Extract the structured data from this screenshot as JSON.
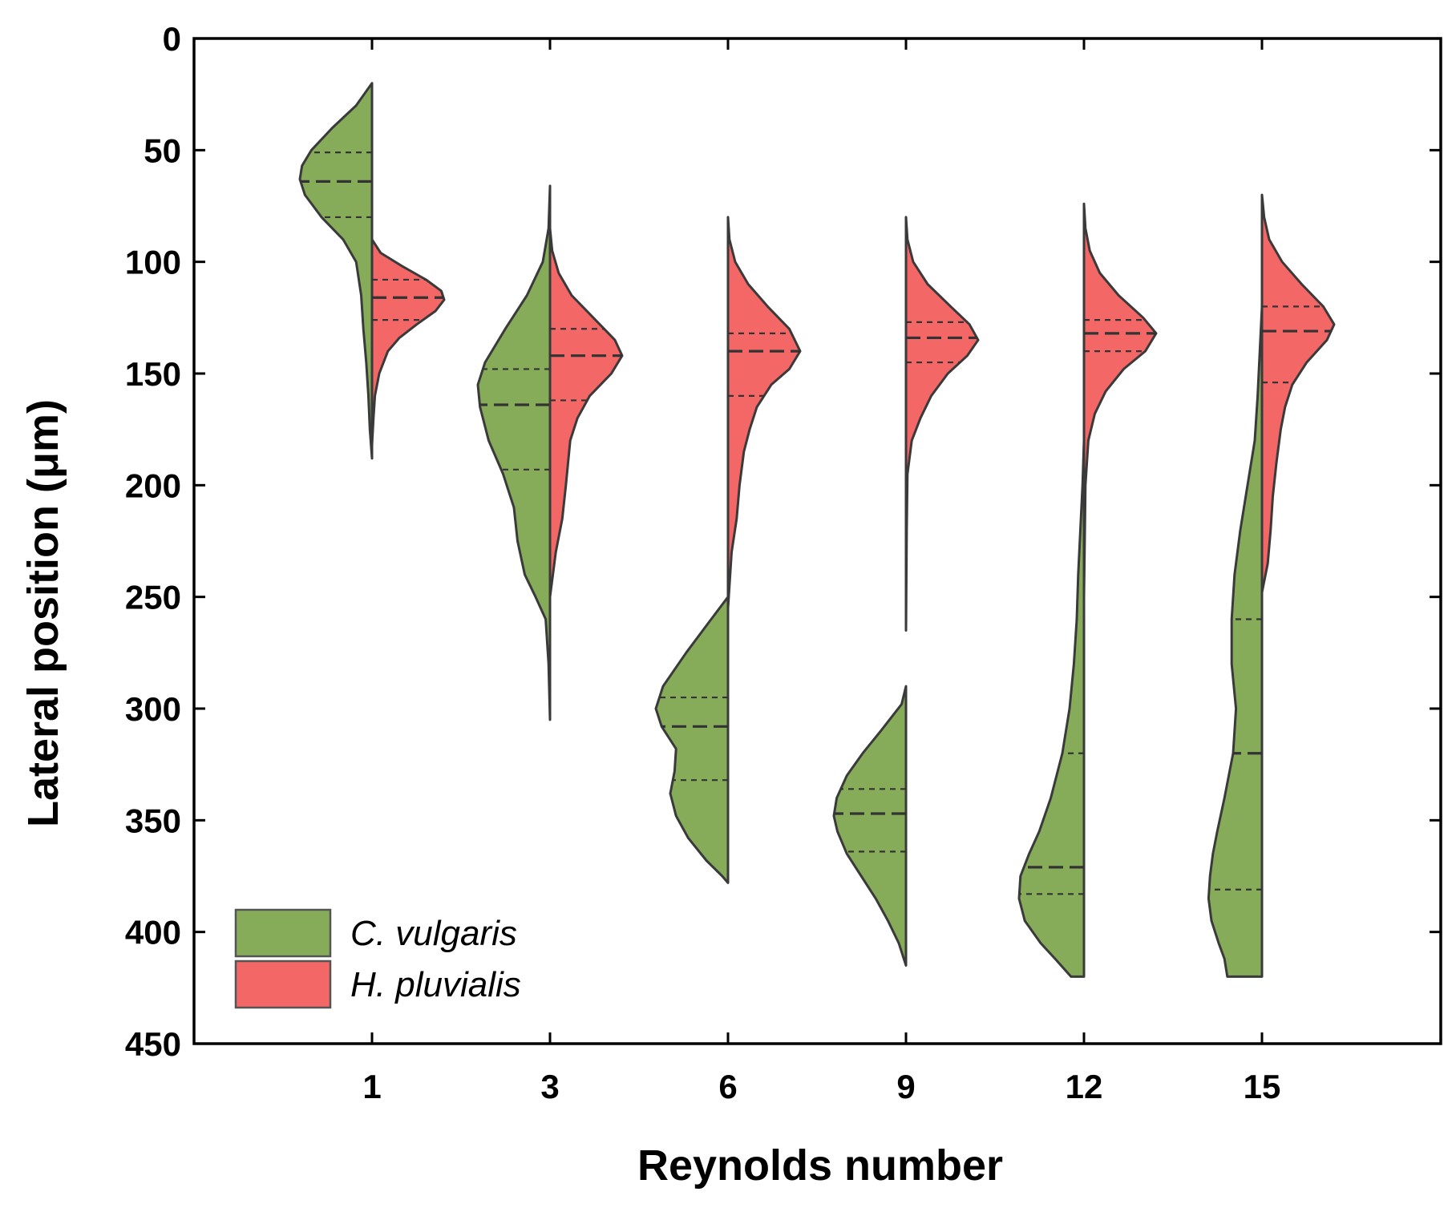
{
  "chart_data": {
    "type": "split-violin",
    "xlabel": "Reynolds number",
    "ylabel": "Lateral position (μm)",
    "ylim": [
      0,
      450
    ],
    "y_inverted": true,
    "yticks": [
      0,
      50,
      100,
      150,
      200,
      250,
      300,
      350,
      400,
      450
    ],
    "categories": [
      "1",
      "3",
      "6",
      "9",
      "12",
      "15"
    ],
    "legend": {
      "position": "bottom-left",
      "entries": [
        {
          "label": "C. vulgaris",
          "color": "#86ac5a"
        },
        {
          "label": "H. pluvialis",
          "color": "#f36766"
        }
      ]
    },
    "series": [
      {
        "name": "C. vulgaris",
        "side": "left",
        "color": "#86ac5a",
        "violins": [
          {
            "re": "1",
            "range": [
              20,
              188
            ],
            "q1": 51,
            "median": 64,
            "q3": 80,
            "profile": [
              [
                20,
                0
              ],
              [
                30,
                0.22
              ],
              [
                40,
                0.55
              ],
              [
                50,
                0.84
              ],
              [
                57,
                0.97
              ],
              [
                63,
                1.0
              ],
              [
                70,
                0.93
              ],
              [
                80,
                0.7
              ],
              [
                90,
                0.4
              ],
              [
                100,
                0.22
              ],
              [
                115,
                0.15
              ],
              [
                130,
                0.12
              ],
              [
                145,
                0.08
              ],
              [
                160,
                0.05
              ],
              [
                175,
                0.03
              ],
              [
                188,
                0
              ]
            ]
          },
          {
            "re": "3",
            "range": [
              66,
              305
            ],
            "q1": 148,
            "median": 164,
            "q3": 193,
            "profile": [
              [
                66,
                0
              ],
              [
                85,
                0.02
              ],
              [
                100,
                0.1
              ],
              [
                115,
                0.32
              ],
              [
                130,
                0.62
              ],
              [
                145,
                0.9
              ],
              [
                155,
                1.0
              ],
              [
                165,
                0.97
              ],
              [
                180,
                0.85
              ],
              [
                195,
                0.65
              ],
              [
                210,
                0.5
              ],
              [
                225,
                0.45
              ],
              [
                240,
                0.35
              ],
              [
                250,
                0.2
              ],
              [
                260,
                0.06
              ],
              [
                280,
                0.02
              ],
              [
                305,
                0
              ]
            ]
          },
          {
            "re": "6",
            "range": [
              250,
              378
            ],
            "q1": 295,
            "median": 308,
            "q3": 332,
            "profile": [
              [
                250,
                0
              ],
              [
                262,
                0.28
              ],
              [
                275,
                0.58
              ],
              [
                290,
                0.9
              ],
              [
                300,
                1.0
              ],
              [
                308,
                0.92
              ],
              [
                318,
                0.72
              ],
              [
                328,
                0.74
              ],
              [
                338,
                0.8
              ],
              [
                348,
                0.72
              ],
              [
                358,
                0.55
              ],
              [
                368,
                0.3
              ],
              [
                375,
                0.08
              ],
              [
                378,
                0
              ]
            ]
          },
          {
            "re": "9",
            "range": [
              290,
              415
            ],
            "q1": 336,
            "median": 347,
            "q3": 364,
            "profile": [
              [
                290,
                0
              ],
              [
                298,
                0.06
              ],
              [
                310,
                0.35
              ],
              [
                320,
                0.6
              ],
              [
                330,
                0.82
              ],
              [
                340,
                0.96
              ],
              [
                348,
                1.0
              ],
              [
                355,
                0.95
              ],
              [
                365,
                0.82
              ],
              [
                375,
                0.62
              ],
              [
                385,
                0.42
              ],
              [
                395,
                0.25
              ],
              [
                405,
                0.1
              ],
              [
                415,
                0
              ]
            ]
          },
          {
            "re": "12",
            "range": [
              180,
              420
            ],
            "q1": 320,
            "median": 371,
            "q3": 383,
            "profile": [
              [
                180,
                0
              ],
              [
                200,
                0.02
              ],
              [
                220,
                0.05
              ],
              [
                240,
                0.08
              ],
              [
                260,
                0.1
              ],
              [
                280,
                0.14
              ],
              [
                300,
                0.2
              ],
              [
                320,
                0.3
              ],
              [
                340,
                0.46
              ],
              [
                355,
                0.62
              ],
              [
                365,
                0.76
              ],
              [
                375,
                0.88
              ],
              [
                385,
                0.9
              ],
              [
                395,
                0.82
              ],
              [
                405,
                0.6
              ],
              [
                412,
                0.4
              ],
              [
                420,
                0.18
              ]
            ]
          },
          {
            "re": "15",
            "range": [
              120,
              420
            ],
            "q1": 260,
            "median": 320,
            "q3": 381,
            "profile": [
              [
                120,
                0
              ],
              [
                140,
                0.03
              ],
              [
                160,
                0.06
              ],
              [
                180,
                0.1
              ],
              [
                200,
                0.2
              ],
              [
                220,
                0.3
              ],
              [
                240,
                0.38
              ],
              [
                260,
                0.42
              ],
              [
                280,
                0.42
              ],
              [
                300,
                0.36
              ],
              [
                320,
                0.4
              ],
              [
                340,
                0.52
              ],
              [
                355,
                0.62
              ],
              [
                365,
                0.68
              ],
              [
                375,
                0.72
              ],
              [
                385,
                0.74
              ],
              [
                395,
                0.7
              ],
              [
                405,
                0.6
              ],
              [
                412,
                0.52
              ],
              [
                420,
                0.48
              ]
            ]
          }
        ]
      },
      {
        "name": "H. pluvialis",
        "side": "right",
        "color": "#f36766",
        "violins": [
          {
            "re": "1",
            "range": [
              90,
              182
            ],
            "q1": 108,
            "median": 116,
            "q3": 126,
            "profile": [
              [
                90,
                0
              ],
              [
                96,
                0.12
              ],
              [
                102,
                0.42
              ],
              [
                108,
                0.75
              ],
              [
                113,
                0.96
              ],
              [
                117,
                1.0
              ],
              [
                122,
                0.88
              ],
              [
                128,
                0.62
              ],
              [
                134,
                0.38
              ],
              [
                140,
                0.22
              ],
              [
                150,
                0.1
              ],
              [
                160,
                0.04
              ],
              [
                170,
                0.02
              ],
              [
                182,
                0
              ]
            ]
          },
          {
            "re": "3",
            "range": [
              85,
              250
            ],
            "q1": 130,
            "median": 142,
            "q3": 162,
            "profile": [
              [
                85,
                0
              ],
              [
                95,
                0.03
              ],
              [
                105,
                0.12
              ],
              [
                115,
                0.3
              ],
              [
                125,
                0.6
              ],
              [
                135,
                0.9
              ],
              [
                142,
                1.0
              ],
              [
                150,
                0.85
              ],
              [
                160,
                0.55
              ],
              [
                170,
                0.38
              ],
              [
                180,
                0.28
              ],
              [
                190,
                0.25
              ],
              [
                200,
                0.22
              ],
              [
                215,
                0.17
              ],
              [
                230,
                0.08
              ],
              [
                250,
                0
              ]
            ]
          },
          {
            "re": "6",
            "range": [
              80,
              255
            ],
            "q1": 132,
            "median": 140,
            "q3": 160,
            "profile": [
              [
                80,
                0
              ],
              [
                90,
                0.02
              ],
              [
                100,
                0.1
              ],
              [
                110,
                0.28
              ],
              [
                120,
                0.55
              ],
              [
                130,
                0.85
              ],
              [
                140,
                1.0
              ],
              [
                148,
                0.85
              ],
              [
                155,
                0.6
              ],
              [
                165,
                0.4
              ],
              [
                175,
                0.3
              ],
              [
                185,
                0.22
              ],
              [
                200,
                0.16
              ],
              [
                215,
                0.12
              ],
              [
                230,
                0.05
              ],
              [
                255,
                0
              ]
            ]
          },
          {
            "re": "9",
            "range": [
              80,
              265
            ],
            "q1": 127,
            "median": 134,
            "q3": 145,
            "profile": [
              [
                80,
                0
              ],
              [
                90,
                0.02
              ],
              [
                100,
                0.1
              ],
              [
                110,
                0.3
              ],
              [
                120,
                0.62
              ],
              [
                128,
                0.88
              ],
              [
                135,
                1.0
              ],
              [
                142,
                0.85
              ],
              [
                150,
                0.58
              ],
              [
                160,
                0.35
              ],
              [
                170,
                0.2
              ],
              [
                180,
                0.08
              ],
              [
                195,
                0.02
              ],
              [
                220,
                0.01
              ],
              [
                265,
                0
              ]
            ]
          },
          {
            "re": "12",
            "range": [
              74,
              250
            ],
            "q1": 126,
            "median": 132,
            "q3": 140,
            "profile": [
              [
                74,
                0
              ],
              [
                85,
                0.02
              ],
              [
                95,
                0.08
              ],
              [
                105,
                0.22
              ],
              [
                115,
                0.48
              ],
              [
                125,
                0.82
              ],
              [
                132,
                1.0
              ],
              [
                140,
                0.85
              ],
              [
                148,
                0.55
              ],
              [
                158,
                0.3
              ],
              [
                168,
                0.15
              ],
              [
                180,
                0.06
              ],
              [
                200,
                0.02
              ],
              [
                250,
                0
              ]
            ]
          },
          {
            "re": "15",
            "range": [
              70,
              248
            ],
            "q1": 120,
            "median": 131,
            "q3": 154,
            "profile": [
              [
                70,
                0
              ],
              [
                80,
                0.03
              ],
              [
                90,
                0.1
              ],
              [
                100,
                0.28
              ],
              [
                110,
                0.55
              ],
              [
                120,
                0.85
              ],
              [
                128,
                1.0
              ],
              [
                135,
                0.9
              ],
              [
                145,
                0.62
              ],
              [
                155,
                0.42
              ],
              [
                165,
                0.32
              ],
              [
                175,
                0.26
              ],
              [
                190,
                0.2
              ],
              [
                205,
                0.15
              ],
              [
                220,
                0.12
              ],
              [
                235,
                0.08
              ],
              [
                248,
                0
              ]
            ]
          }
        ]
      }
    ]
  }
}
